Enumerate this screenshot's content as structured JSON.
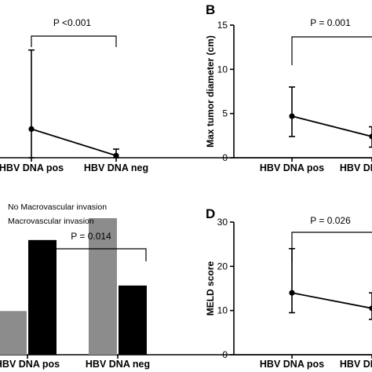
{
  "chart_data": [
    {
      "id": "A",
      "type": "line",
      "panel_letter": "",
      "categories": [
        "HBV DNA pos",
        "HBV DNA neg"
      ],
      "series": [
        {
          "mean": [
            20,
            1.5
          ],
          "error_low": [
            0,
            0
          ],
          "error_high": [
            75,
            6
          ]
        }
      ],
      "ylim": [
        0,
        100
      ],
      "yticks": [],
      "ylabel": "",
      "p_value": "P <0.001"
    },
    {
      "id": "B",
      "type": "line",
      "panel_letter": "B",
      "categories": [
        "HBV DNA pos",
        "HBV DNA neg"
      ],
      "series": [
        {
          "mean": [
            4.7,
            2.4
          ],
          "error_low": [
            2.4,
            1.2
          ],
          "error_high": [
            8,
            3.5
          ]
        }
      ],
      "ylim": [
        0,
        15
      ],
      "yticks": [
        0,
        5,
        10,
        15
      ],
      "ylabel": "Max tumor diameter (cm)",
      "p_value": "P = 0.001"
    },
    {
      "id": "C",
      "type": "bar",
      "panel_letter": "",
      "categories": [
        "HBV DNA pos",
        "HBV DNA neg"
      ],
      "legend": [
        "No Macrovascular invasion",
        "Macrovascular invasion"
      ],
      "series": [
        {
          "color": "#8c8c8c",
          "values": [
            24,
            75
          ]
        },
        {
          "color": "#000000",
          "values": [
            63,
            38
          ]
        }
      ],
      "ylim": [
        0,
        100
      ],
      "yticks": [],
      "ylabel": "",
      "p_value": "P = 0.014"
    },
    {
      "id": "D",
      "type": "line",
      "panel_letter": "D",
      "categories": [
        "HBV DNA pos",
        "HBV DNA neg"
      ],
      "series": [
        {
          "mean": [
            14,
            10.5
          ],
          "error_low": [
            9.5,
            8
          ],
          "error_high": [
            24,
            14
          ]
        }
      ],
      "ylim": [
        0,
        30
      ],
      "yticks": [
        0,
        10,
        20,
        30
      ],
      "ylabel": "MELD score",
      "p_value": "P = 0.026"
    }
  ]
}
